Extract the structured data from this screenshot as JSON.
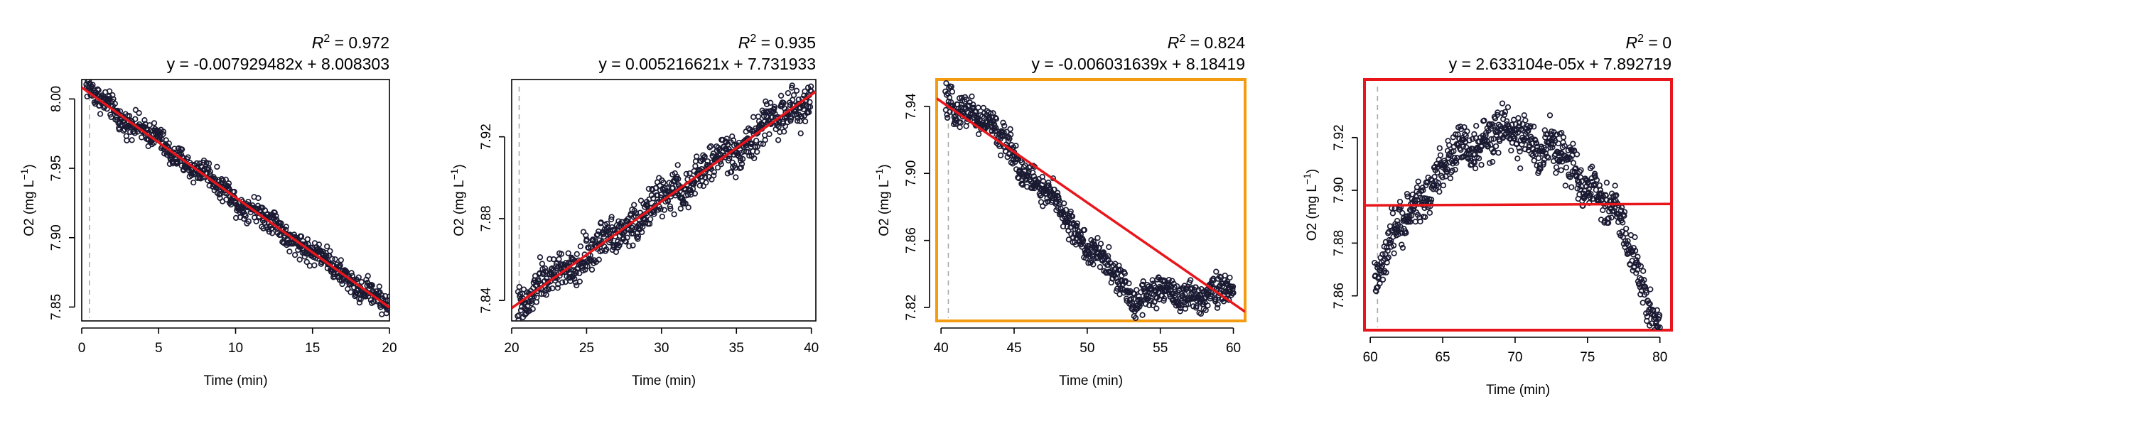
{
  "chart_data": [
    {
      "type": "scatter",
      "r2_text": "= 0.972",
      "r2_label": "R",
      "r2_sup": "2",
      "equation": "y = -0.007929482x + 8.008303",
      "xlabel": "Time (min)",
      "ylabel_main": "O2 (mg L",
      "ylabel_sup": "−1",
      "ylabel_end": ")",
      "xlim": [
        0,
        20
      ],
      "ylim": [
        7.84,
        8.014
      ],
      "x_ticks": [
        0,
        5,
        10,
        15,
        20
      ],
      "x_tick_labels": [
        "0",
        "5",
        "10",
        "15",
        "20"
      ],
      "y_ticks": [
        7.85,
        7.9,
        7.95,
        8.0
      ],
      "y_tick_labels": [
        "7.85",
        "7.90",
        "7.95",
        "8.00"
      ],
      "vline_x": 0.5,
      "fit": {
        "slope": -0.007929482,
        "intercept": 8.008303
      },
      "frame": "none",
      "shape": "linear",
      "noise": 0.0075,
      "x_range": [
        0.3,
        20
      ]
    },
    {
      "type": "scatter",
      "r2_text": "= 0.935",
      "r2_label": "R",
      "r2_sup": "2",
      "equation": "y = 0.005216621x + 7.731933",
      "xlabel": "Time (min)",
      "ylabel_main": "O2 (mg L",
      "ylabel_sup": "−1",
      "ylabel_end": ")",
      "xlim": [
        20,
        40.3
      ],
      "ylim": [
        7.83,
        7.948
      ],
      "x_ticks": [
        20,
        25,
        30,
        35,
        40
      ],
      "x_tick_labels": [
        "20",
        "25",
        "30",
        "35",
        "40"
      ],
      "y_ticks": [
        7.84,
        7.88,
        7.92
      ],
      "y_tick_labels": [
        "7.84",
        "7.88",
        "7.92"
      ],
      "vline_x": 20.5,
      "fit": {
        "slope": 0.005216621,
        "intercept": 7.731933
      },
      "frame": "none",
      "shape": "linear",
      "noise": 0.008,
      "x_range": [
        20.4,
        40
      ]
    },
    {
      "type": "scatter",
      "r2_text": "= 0.824",
      "r2_label": "R",
      "r2_sup": "2",
      "equation": "y = -0.006031639x + 8.18419",
      "xlabel": "Time (min)",
      "ylabel_main": "O2 (mg L",
      "ylabel_sup": "−1",
      "ylabel_end": ")",
      "xlim": [
        39.7,
        60.8
      ],
      "ylim": [
        7.812,
        7.956
      ],
      "x_ticks": [
        40,
        45,
        50,
        55,
        60
      ],
      "x_tick_labels": [
        "40",
        "45",
        "50",
        "55",
        "60"
      ],
      "y_ticks": [
        7.82,
        7.86,
        7.9,
        7.94
      ],
      "y_tick_labels": [
        "7.82",
        "7.86",
        "7.90",
        "7.94"
      ],
      "vline_x": 40.5,
      "fit": {
        "slope": -0.006031639,
        "intercept": 8.18419
      },
      "frame": "orange",
      "frame_color": "#f39c12",
      "shape": "dip",
      "noise": 0.008,
      "x_range": [
        40.3,
        60
      ]
    },
    {
      "type": "scatter",
      "r2_text": "= 0",
      "r2_label": "R",
      "r2_sup": "2",
      "equation": "y = 2.633104e-05x + 7.892719",
      "xlabel": "Time (min)",
      "ylabel_main": "O2 (mg L",
      "ylabel_sup": "−1",
      "ylabel_end": ")",
      "xlim": [
        59.6,
        80.8
      ],
      "ylim": [
        7.847,
        7.942
      ],
      "x_ticks": [
        60,
        65,
        70,
        75,
        80
      ],
      "x_tick_labels": [
        "60",
        "65",
        "70",
        "75",
        "80"
      ],
      "y_ticks": [
        7.86,
        7.88,
        7.9,
        7.92
      ],
      "y_tick_labels": [
        "7.86",
        "7.88",
        "7.90",
        "7.92"
      ],
      "vline_x": 60.5,
      "fit": {
        "slope": 2.633104e-05,
        "intercept": 7.892719
      },
      "frame": "red",
      "frame_color": "#e8161b",
      "shape": "hump",
      "noise": 0.007,
      "x_range": [
        60.3,
        80
      ]
    }
  ],
  "colors": {
    "points": "#1a1a33",
    "fit_line": "#e8161b",
    "vline": "#aaaaaa"
  }
}
